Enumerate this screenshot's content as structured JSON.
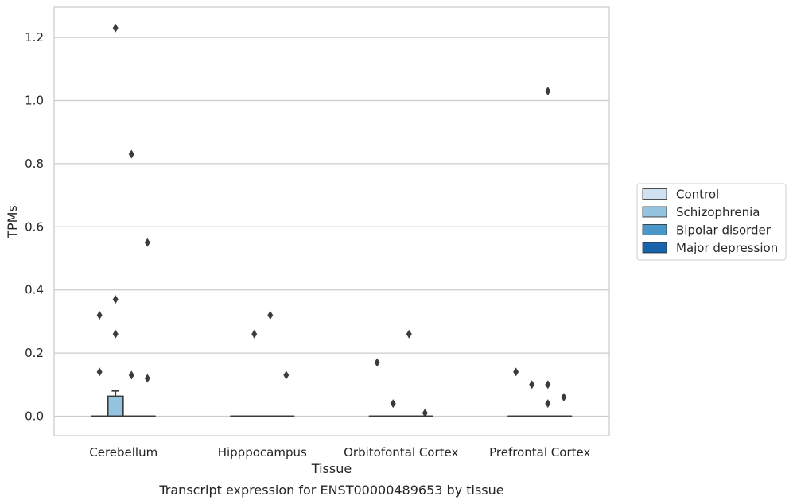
{
  "chart_data": {
    "type": "box",
    "title": "",
    "caption": "Transcript expression for ENST00000489653 by tissue",
    "xlabel": "Tissue",
    "ylabel": "TPMs",
    "ylim": [
      -0.06,
      1.29
    ],
    "yticks": [
      0.0,
      0.2,
      0.4,
      0.6,
      0.8,
      1.0,
      1.2
    ],
    "ytick_labels": [
      "0.0",
      "0.2",
      "0.4",
      "0.6",
      "0.8",
      "1.0",
      "1.2"
    ],
    "grid": "horizontal",
    "legend_position": "right",
    "categories": [
      "Cerebellum",
      "Hipppocampus",
      "Orbitofontal Cortex",
      "Prefrontal Cortex"
    ],
    "series": [
      {
        "name": "Control",
        "color": "#d0e1f2",
        "boxes": [
          {
            "q1": 0,
            "median": 0,
            "q3": 0,
            "whisker_low": 0,
            "whisker_high": 0,
            "outliers": [
              0.14,
              0.32
            ]
          },
          {
            "q1": 0,
            "median": 0,
            "q3": 0,
            "whisker_low": 0,
            "whisker_high": 0,
            "outliers": []
          },
          {
            "q1": 0,
            "median": 0,
            "q3": 0,
            "whisker_low": 0,
            "whisker_high": 0,
            "outliers": [
              0.17
            ]
          },
          {
            "q1": 0,
            "median": 0,
            "q3": 0,
            "whisker_low": 0,
            "whisker_high": 0,
            "outliers": [
              0.14
            ]
          }
        ]
      },
      {
        "name": "Schizophrenia",
        "color": "#94c4df",
        "boxes": [
          {
            "q1": 0,
            "median": 0,
            "q3": 0.063,
            "whisker_low": 0,
            "whisker_high": 0.08,
            "outliers": [
              0.26,
              0.37,
              1.23
            ]
          },
          {
            "q1": 0,
            "median": 0,
            "q3": 0,
            "whisker_low": 0,
            "whisker_high": 0,
            "outliers": [
              0.26
            ]
          },
          {
            "q1": 0,
            "median": 0,
            "q3": 0,
            "whisker_low": 0,
            "whisker_high": 0,
            "outliers": [
              0.04
            ]
          },
          {
            "q1": 0,
            "median": 0,
            "q3": 0,
            "whisker_low": 0,
            "whisker_high": 0,
            "outliers": [
              0.1
            ]
          }
        ]
      },
      {
        "name": "Bipolar disorder",
        "color": "#4a98c9",
        "boxes": [
          {
            "q1": 0,
            "median": 0,
            "q3": 0,
            "whisker_low": 0,
            "whisker_high": 0,
            "outliers": [
              0.13,
              0.83
            ]
          },
          {
            "q1": 0,
            "median": 0,
            "q3": 0,
            "whisker_low": 0,
            "whisker_high": 0,
            "outliers": [
              0.32
            ]
          },
          {
            "q1": 0,
            "median": 0,
            "q3": 0,
            "whisker_low": 0,
            "whisker_high": 0,
            "outliers": [
              0.26
            ]
          },
          {
            "q1": 0,
            "median": 0,
            "q3": 0,
            "whisker_low": 0,
            "whisker_high": 0,
            "outliers": [
              0.04,
              0.1,
              1.03
            ]
          }
        ]
      },
      {
        "name": "Major depression",
        "color": "#1764ab",
        "boxes": [
          {
            "q1": 0,
            "median": 0,
            "q3": 0,
            "whisker_low": 0,
            "whisker_high": 0,
            "outliers": [
              0.12,
              0.55
            ]
          },
          {
            "q1": 0,
            "median": 0,
            "q3": 0,
            "whisker_low": 0,
            "whisker_high": 0,
            "outliers": [
              0.13
            ]
          },
          {
            "q1": 0,
            "median": 0,
            "q3": 0,
            "whisker_low": 0,
            "whisker_high": 0,
            "outliers": [
              0.01
            ]
          },
          {
            "q1": 0,
            "median": 0,
            "q3": 0,
            "whisker_low": 0,
            "whisker_high": 0,
            "outliers": [
              0.06
            ]
          }
        ]
      }
    ]
  }
}
